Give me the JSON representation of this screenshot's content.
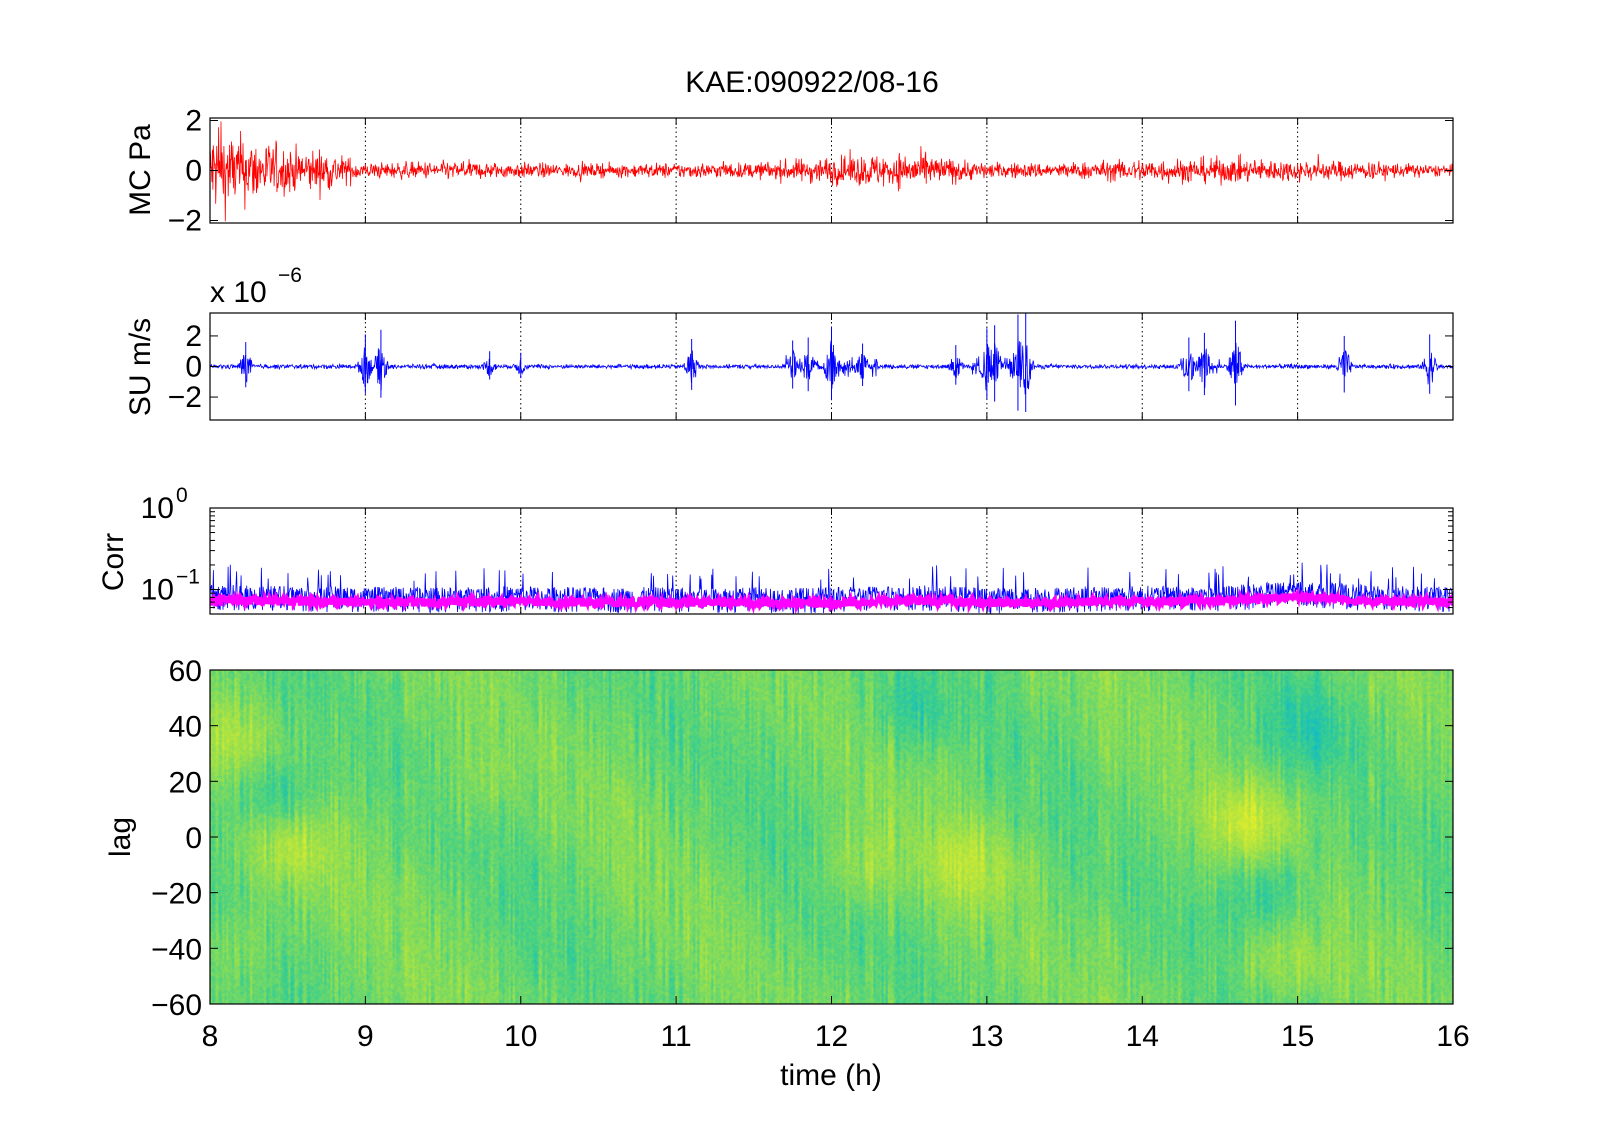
{
  "title": "KAE:090922/08-16",
  "xlabel": "time (h)",
  "colors": {
    "mc_trace": "#ff0000",
    "su_trace": "#0000ff",
    "corr_raw": "#0000ff",
    "corr_smooth": "#ff00ff",
    "axes": "#000000",
    "grid": "#000000"
  },
  "chart_data": [
    {
      "type": "line",
      "ylabel": "MC Pa",
      "xlim": [
        8,
        16
      ],
      "ylim": [
        -2.1,
        2.1
      ],
      "xticks": [
        8,
        9,
        10,
        11,
        12,
        13,
        14,
        15,
        16
      ],
      "yticks": [
        "2",
        "0",
        "−2"
      ],
      "grid": "vertical dotted",
      "series": [
        {
          "x": [
            8.0,
            8.25,
            8.5,
            8.75,
            9.0,
            9.5,
            10.0,
            10.5,
            11.0,
            11.5,
            12.0,
            12.5,
            13.0,
            13.5,
            14.0,
            14.5,
            15.0,
            15.5,
            16.0
          ],
          "envelope": [
            1.7,
            1.3,
            0.9,
            0.8,
            0.3,
            0.35,
            0.3,
            0.25,
            0.3,
            0.3,
            0.55,
            0.7,
            0.3,
            0.3,
            0.45,
            0.5,
            0.4,
            0.35,
            0.2
          ]
        }
      ]
    },
    {
      "type": "line",
      "ylabel": "SU m/s",
      "scale_label": "x 10",
      "scale_exp": "−6",
      "xlim": [
        8,
        16
      ],
      "ylim": [
        -3.5,
        3.5
      ],
      "xticks": [
        8,
        9,
        10,
        11,
        12,
        13,
        14,
        15,
        16
      ],
      "yticks": [
        "2",
        "0",
        "−2"
      ],
      "grid": "vertical dotted",
      "series": [
        {
          "spikes_x": [
            8.23,
            9.0,
            9.1,
            9.8,
            10.0,
            11.1,
            11.75,
            11.85,
            12.0,
            12.2,
            12.8,
            13.0,
            13.05,
            13.2,
            13.25,
            14.3,
            14.4,
            14.6,
            15.3,
            15.85
          ],
          "spikes_amp": [
            1.6,
            2.1,
            2.4,
            1.0,
            0.9,
            1.8,
            1.7,
            1.9,
            2.6,
            1.5,
            1.4,
            2.5,
            2.7,
            3.4,
            3.5,
            1.9,
            2.2,
            3.0,
            2.0,
            2.1
          ]
        }
      ]
    },
    {
      "type": "line",
      "ylabel": "Corr",
      "yscale": "log",
      "xlim": [
        8,
        16
      ],
      "ylim": [
        0.05,
        1.0
      ],
      "xticks": [
        8,
        9,
        10,
        11,
        12,
        13,
        14,
        15,
        16
      ],
      "yticks": [
        {
          "base": "10",
          "exp": "0"
        },
        {
          "base": "10",
          "exp": "−1"
        }
      ],
      "grid": "vertical dotted",
      "series": [
        {
          "x": [
            8,
            8.5,
            9,
            9.5,
            10,
            10.5,
            11,
            11.5,
            12,
            12.5,
            13,
            13.5,
            14,
            14.5,
            15,
            15.5,
            16
          ],
          "y": [
            0.085,
            0.082,
            0.08,
            0.079,
            0.082,
            0.078,
            0.08,
            0.079,
            0.078,
            0.085,
            0.078,
            0.08,
            0.083,
            0.082,
            0.095,
            0.082,
            0.08
          ]
        },
        {
          "x": [
            8,
            8.5,
            9,
            9.5,
            10,
            10.5,
            11,
            11.5,
            12,
            12.5,
            13,
            13.5,
            14,
            14.5,
            15,
            15.5,
            16
          ],
          "y": [
            0.075,
            0.072,
            0.07,
            0.07,
            0.072,
            0.069,
            0.07,
            0.069,
            0.068,
            0.074,
            0.068,
            0.07,
            0.073,
            0.072,
            0.082,
            0.072,
            0.07
          ]
        }
      ]
    },
    {
      "type": "heatmap",
      "ylabel": "lag",
      "xlim": [
        8,
        16
      ],
      "ylim": [
        -60,
        60
      ],
      "xticks": [
        "8",
        "9",
        "10",
        "11",
        "12",
        "13",
        "14",
        "15",
        "16"
      ],
      "yticks": [
        "60",
        "40",
        "20",
        "0",
        "−20",
        "−40",
        "−60"
      ],
      "features": [
        {
          "t": 8.1,
          "lag": 35,
          "level": 0.7
        },
        {
          "t": 8.4,
          "lag": 15,
          "level": 0.25
        },
        {
          "t": 8.5,
          "lag": -5,
          "level": 0.75
        },
        {
          "t": 8.2,
          "lag": -40,
          "level": 0.65
        },
        {
          "t": 9.7,
          "lag": 20,
          "level": 0.6
        },
        {
          "t": 12.2,
          "lag": -10,
          "level": 0.7
        },
        {
          "t": 12.9,
          "lag": -10,
          "level": 0.75
        },
        {
          "t": 12.5,
          "lag": 45,
          "level": 0.3
        },
        {
          "t": 14.7,
          "lag": 5,
          "level": 0.85
        },
        {
          "t": 14.8,
          "lag": -20,
          "level": 0.25
        },
        {
          "t": 15.1,
          "lag": 40,
          "level": 0.3
        },
        {
          "t": 14.9,
          "lag": -45,
          "level": 0.7
        }
      ],
      "colormap": [
        "#00b4e0",
        "#3ccf8c",
        "#9de04a",
        "#e6ee28"
      ]
    }
  ]
}
